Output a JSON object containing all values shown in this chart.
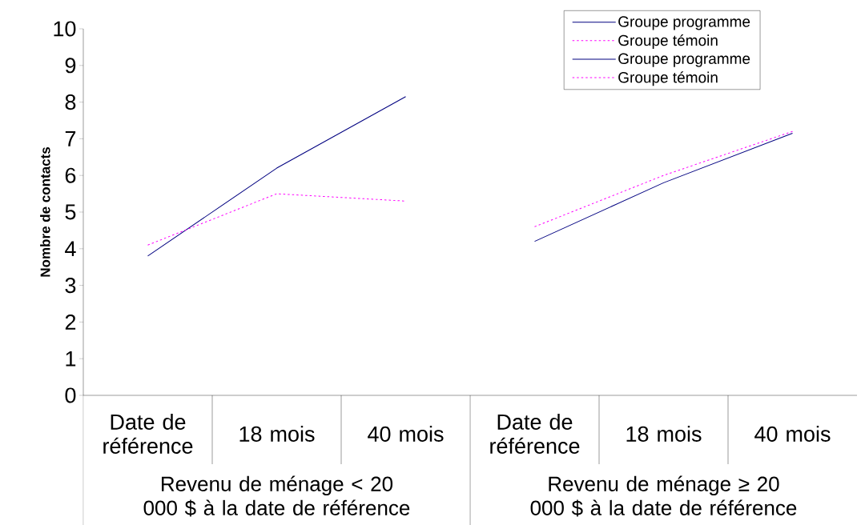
{
  "chart_data": {
    "type": "line",
    "ylabel": "Nombre de contacts",
    "categories": [
      "Date de référence",
      "18 mois",
      "40 mois",
      "Date de référence",
      "18 mois",
      "40 mois"
    ],
    "series": [
      {
        "name": "Groupe programme",
        "color": "#000080",
        "line_style": "solid",
        "values": [
          3.8,
          6.2,
          8.15,
          null,
          null,
          null
        ]
      },
      {
        "name": "Groupe témoin",
        "color": "#ff00ff",
        "line_style": "dashed",
        "values": [
          4.1,
          5.5,
          5.3,
          null,
          null,
          null
        ]
      },
      {
        "name": "Groupe programme",
        "color": "#000080",
        "line_style": "solid",
        "values": [
          null,
          null,
          null,
          4.2,
          5.8,
          7.15
        ]
      },
      {
        "name": "Groupe témoin",
        "color": "#ff00ff",
        "line_style": "dashed",
        "values": [
          null,
          null,
          null,
          4.6,
          6.0,
          7.2
        ]
      }
    ],
    "annotations": [
      "Revenu de ménage < 20 000 $ à la date de référence",
      "Revenu de ménage ≥ 20 000 $ à la date de référence"
    ],
    "ylim": [
      0,
      10
    ],
    "yticks": [
      0,
      1,
      2,
      3,
      4,
      5,
      6,
      7,
      8,
      9,
      10
    ],
    "grid": false,
    "legend": "top right",
    "marker": "none"
  }
}
